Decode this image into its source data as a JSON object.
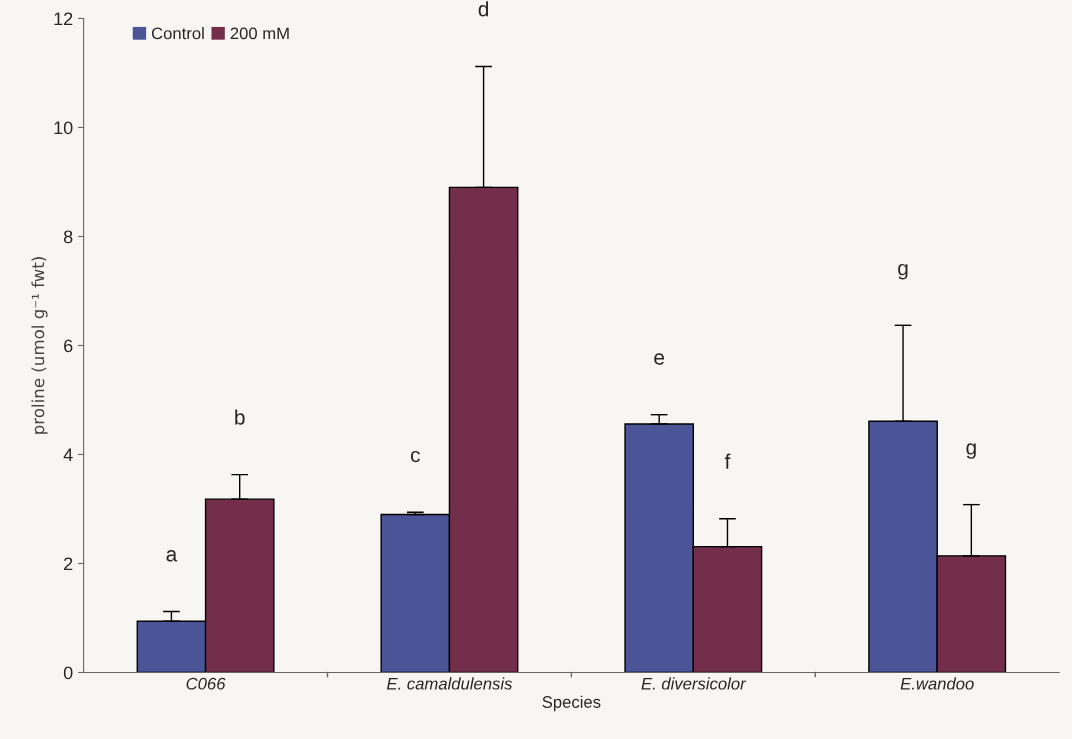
{
  "chart_data": {
    "type": "bar",
    "xlabel": "Species",
    "ylabel": "proline (umol g⁻¹ fwt)",
    "categories": [
      "C066",
      "E. camaldulensis",
      "E. diversicolor",
      "E.wandoo"
    ],
    "series": [
      {
        "name": "Control",
        "color": "#4a5496",
        "values": [
          0.94,
          2.9,
          4.56,
          4.61
        ],
        "errors": [
          [
            0.94,
            1.12
          ],
          [
            2.9,
            2.94
          ],
          [
            4.56,
            4.73
          ],
          [
            4.61,
            6.37
          ]
        ]
      },
      {
        "name": "200 mM",
        "color": "#722e4b",
        "values": [
          3.18,
          8.9,
          2.31,
          2.14
        ],
        "errors": [
          [
            3.18,
            3.63
          ],
          [
            8.9,
            11.12
          ],
          [
            2.31,
            2.82
          ],
          [
            2.14,
            3.08
          ]
        ]
      }
    ],
    "ylim": [
      0,
      12
    ],
    "yticks": [
      0,
      2,
      4,
      6,
      8,
      10,
      12
    ],
    "grid": false,
    "legend": "top left",
    "annotations": [
      "a",
      "b",
      "c",
      "d",
      "e",
      "f",
      "g",
      "g"
    ]
  }
}
